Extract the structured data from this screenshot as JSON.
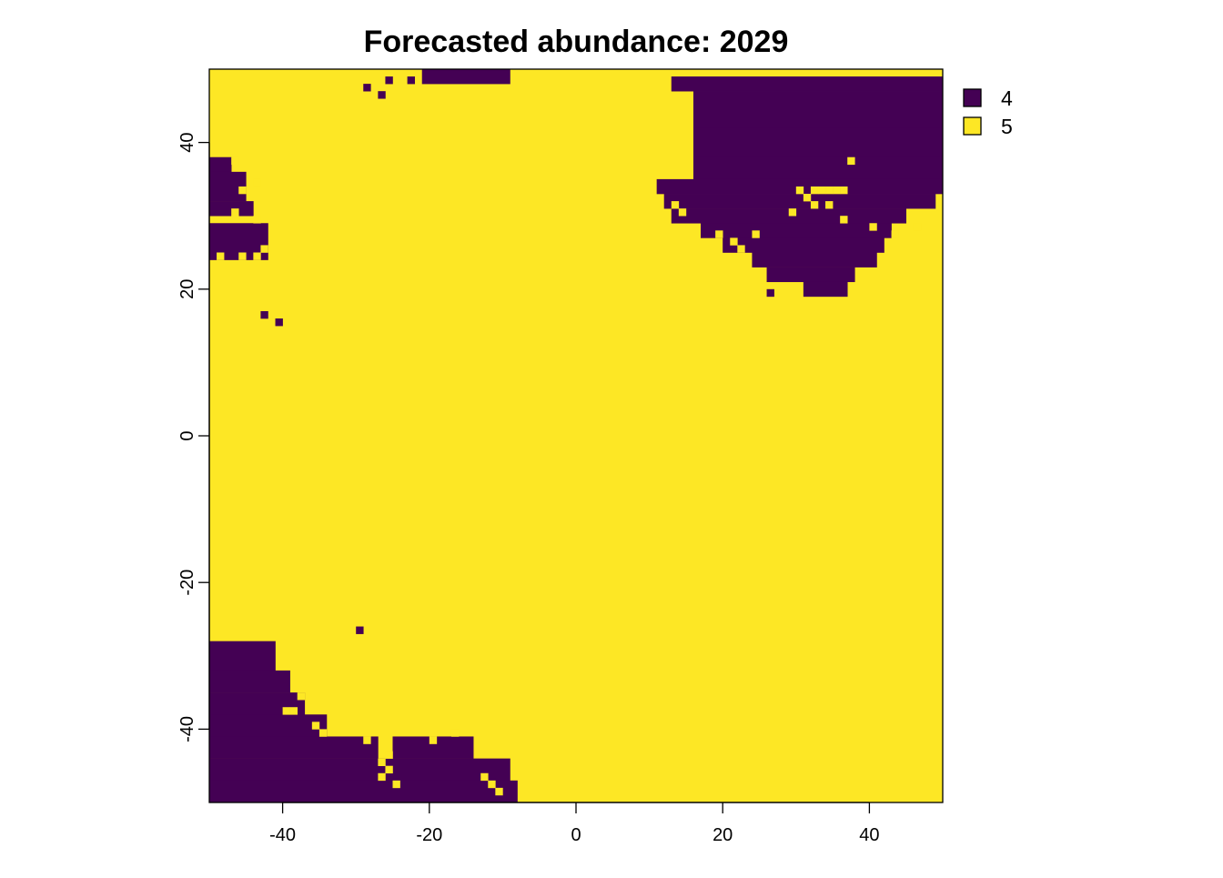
{
  "chart_data": {
    "type": "heatmap",
    "title": "Forecasted abundance: 2029",
    "xlabel": "",
    "ylabel": "",
    "xlim": [
      -50,
      49
    ],
    "ylim": [
      -50,
      49
    ],
    "cell_size": 1,
    "x_ticks": [
      -40,
      -20,
      0,
      20,
      40
    ],
    "y_ticks": [
      -40,
      -20,
      0,
      20,
      40
    ],
    "x_tick_labels": [
      "-40",
      "-20",
      "0",
      "20",
      "40"
    ],
    "y_tick_labels": [
      "-40",
      "-20",
      "0",
      "20",
      "40"
    ],
    "grid": false,
    "legend_position": "right",
    "background_value": 5,
    "classes": [
      {
        "value": 4,
        "label": "4",
        "color": "#440154"
      },
      {
        "value": 5,
        "label": "5",
        "color": "#FDE725"
      }
    ],
    "regions_value_4": [
      {
        "y": [
          47,
          48
        ],
        "x_ranges": [
          [
            13,
            49
          ]
        ]
      },
      {
        "y": [
          42,
          46
        ],
        "x_ranges": [
          [
            16,
            49
          ]
        ]
      },
      {
        "y": [
          38,
          41
        ],
        "x_ranges": [
          [
            16,
            49
          ]
        ]
      },
      {
        "y": [
          35,
          37
        ],
        "x_ranges": [
          [
            16,
            49
          ]
        ]
      },
      {
        "y": [
          33,
          34
        ],
        "x_ranges": [
          [
            11,
            49
          ]
        ]
      },
      {
        "y": [
          31,
          32
        ],
        "x_ranges": [
          [
            12,
            48
          ]
        ]
      },
      {
        "y": [
          29,
          30
        ],
        "x_ranges": [
          [
            13,
            44
          ]
        ]
      },
      {
        "y": [
          27,
          28
        ],
        "x_ranges": [
          [
            17,
            42
          ]
        ]
      },
      {
        "y": [
          25,
          26
        ],
        "x_ranges": [
          [
            20,
            41
          ]
        ]
      },
      {
        "y": [
          23,
          24
        ],
        "x_ranges": [
          [
            24,
            40
          ]
        ]
      },
      {
        "y": [
          21,
          22
        ],
        "x_ranges": [
          [
            26,
            37
          ]
        ]
      },
      {
        "y": [
          19,
          20
        ],
        "x_ranges": [
          [
            31,
            36
          ]
        ]
      },
      {
        "y": [
          36,
          37
        ],
        "x_ranges": [
          [
            -50,
            -48
          ]
        ]
      },
      {
        "y": [
          32,
          35
        ],
        "x_ranges": [
          [
            -50,
            -46
          ]
        ]
      },
      {
        "y": [
          30,
          31
        ],
        "x_ranges": [
          [
            -50,
            -45
          ]
        ]
      },
      {
        "y": [
          24,
          28
        ],
        "x_ranges": [
          [
            -50,
            -43
          ]
        ]
      },
      {
        "y": [
          48,
          49
        ],
        "x_ranges": [
          [
            -21,
            -10
          ]
        ]
      },
      {
        "y": [
          -32,
          -29
        ],
        "x_ranges": [
          [
            -50,
            -42
          ]
        ]
      },
      {
        "y": [
          -35,
          -33
        ],
        "x_ranges": [
          [
            -50,
            -40
          ]
        ]
      },
      {
        "y": [
          -38,
          -36
        ],
        "x_ranges": [
          [
            -50,
            -38
          ]
        ]
      },
      {
        "y": [
          -41,
          -39
        ],
        "x_ranges": [
          [
            -50,
            -35
          ]
        ]
      },
      {
        "y": [
          -44,
          -42
        ],
        "x_ranges": [
          [
            -50,
            -28
          ],
          [
            -25,
            -15
          ]
        ]
      },
      {
        "y": [
          -47,
          -45
        ],
        "x_ranges": [
          [
            -50,
            -10
          ]
        ]
      },
      {
        "y": [
          -50,
          -48
        ],
        "x_ranges": [
          [
            -50,
            -9
          ]
        ]
      }
    ],
    "cells_value_4": [
      [
        -30,
        -27
      ],
      [
        -43,
        16
      ],
      [
        -41,
        15
      ],
      [
        26,
        19
      ],
      [
        -29,
        47
      ],
      [
        -27,
        46
      ],
      [
        -26,
        48
      ],
      [
        -23,
        48
      ]
    ],
    "cells_value_5": [
      [
        30,
        33
      ],
      [
        31,
        32
      ],
      [
        32,
        33
      ],
      [
        33,
        33
      ],
      [
        34,
        33
      ],
      [
        35,
        33
      ],
      [
        36,
        33
      ],
      [
        37,
        37
      ],
      [
        32,
        31
      ],
      [
        34,
        31
      ],
      [
        29,
        30
      ],
      [
        36,
        29
      ],
      [
        40,
        28
      ],
      [
        24,
        27
      ],
      [
        21,
        26
      ],
      [
        22,
        25
      ],
      [
        19,
        27
      ],
      [
        13,
        31
      ],
      [
        14,
        30
      ],
      [
        46,
        28
      ],
      [
        43,
        27
      ],
      [
        -47,
        37
      ],
      [
        -46,
        33
      ],
      [
        -44,
        34
      ],
      [
        -47,
        30
      ],
      [
        -44,
        29
      ],
      [
        -49,
        24
      ],
      [
        -46,
        24
      ],
      [
        -44,
        24
      ],
      [
        -43,
        25
      ],
      [
        -40,
        -38
      ],
      [
        -38,
        -36
      ],
      [
        -39,
        -38
      ],
      [
        -36,
        -40
      ],
      [
        -35,
        -41
      ],
      [
        -29,
        -42
      ],
      [
        -27,
        -45
      ],
      [
        -27,
        -47
      ],
      [
        -26,
        -46
      ],
      [
        -25,
        -48
      ],
      [
        -26,
        -44
      ],
      [
        -20,
        -42
      ],
      [
        -17,
        -41
      ],
      [
        -13,
        -47
      ],
      [
        -12,
        -48
      ],
      [
        -11,
        -49
      ]
    ]
  }
}
